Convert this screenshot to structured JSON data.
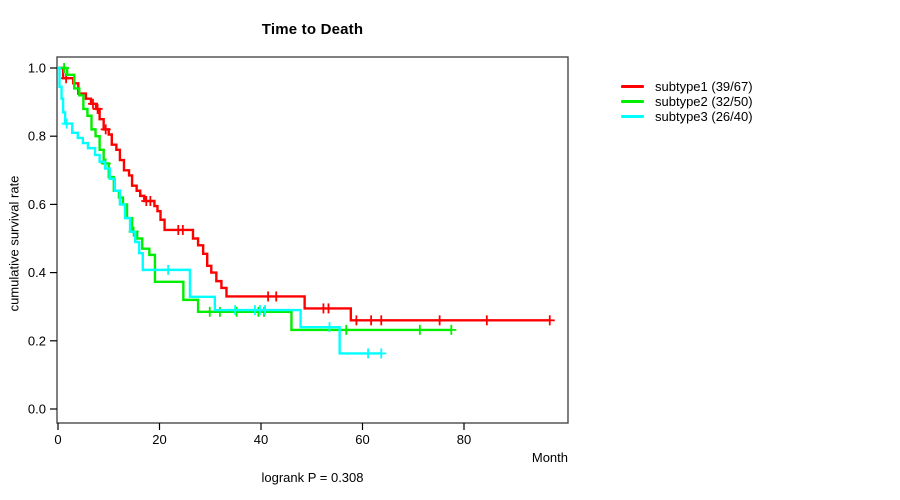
{
  "chart_data": {
    "type": "line",
    "subtype": "kaplan-meier-survival-steps",
    "title": "Time to Death",
    "xlabel": "Month",
    "ylabel": "cumulative survival rate",
    "footnote": "logrank P = 0.308",
    "xlim": [
      0,
      100
    ],
    "ylim": [
      0.0,
      1.0
    ],
    "x_ticks": [
      0,
      20,
      40,
      60,
      80
    ],
    "y_ticks": [
      0.0,
      0.2,
      0.4,
      0.6,
      0.8,
      1.0
    ],
    "grid": false,
    "legend_position": "top-right-outside",
    "series": [
      {
        "name": "subtype1 (39/67)",
        "color": "#ff0000",
        "steps": [
          [
            0,
            1.0
          ],
          [
            1,
            0.97
          ],
          [
            3,
            0.955
          ],
          [
            4,
            0.925
          ],
          [
            5.5,
            0.91
          ],
          [
            6.5,
            0.895
          ],
          [
            7.5,
            0.88
          ],
          [
            8.2,
            0.85
          ],
          [
            9,
            0.82
          ],
          [
            10,
            0.805
          ],
          [
            10.6,
            0.775
          ],
          [
            11.5,
            0.76
          ],
          [
            12.2,
            0.73
          ],
          [
            13,
            0.7
          ],
          [
            14,
            0.685
          ],
          [
            14.6,
            0.655
          ],
          [
            15.5,
            0.64
          ],
          [
            16.2,
            0.625
          ],
          [
            17,
            0.61
          ],
          [
            19,
            0.595
          ],
          [
            19.6,
            0.58
          ],
          [
            20.2,
            0.555
          ],
          [
            21,
            0.525
          ],
          [
            26.6,
            0.5
          ],
          [
            27.6,
            0.48
          ],
          [
            28.6,
            0.455
          ],
          [
            29.4,
            0.42
          ],
          [
            30.2,
            0.4
          ],
          [
            31.2,
            0.375
          ],
          [
            32.2,
            0.355
          ],
          [
            33.2,
            0.33
          ],
          [
            48.6,
            0.295
          ],
          [
            57.7,
            0.26
          ]
        ],
        "end_time": 96.9,
        "censors": [
          [
            1.6,
            0.97
          ],
          [
            6.9,
            0.895
          ],
          [
            7.8,
            0.88
          ],
          [
            9.4,
            0.82
          ],
          [
            17.4,
            0.61
          ],
          [
            18.2,
            0.61
          ],
          [
            23.7,
            0.525
          ],
          [
            24.6,
            0.525
          ],
          [
            41.4,
            0.33
          ],
          [
            43.0,
            0.33
          ],
          [
            52.3,
            0.295
          ],
          [
            53.3,
            0.295
          ],
          [
            58.8,
            0.26
          ],
          [
            61.7,
            0.26
          ],
          [
            63.7,
            0.26
          ],
          [
            75.2,
            0.26
          ],
          [
            84.5,
            0.26
          ],
          [
            96.9,
            0.26
          ]
        ]
      },
      {
        "name": "subtype2 (32/50)",
        "color": "#00ee00",
        "steps": [
          [
            0,
            1.0
          ],
          [
            1.8,
            0.98
          ],
          [
            3.2,
            0.94
          ],
          [
            4.2,
            0.92
          ],
          [
            5,
            0.88
          ],
          [
            5.8,
            0.86
          ],
          [
            6.6,
            0.82
          ],
          [
            7.4,
            0.8
          ],
          [
            8.2,
            0.76
          ],
          [
            9,
            0.72
          ],
          [
            10,
            0.68
          ],
          [
            11,
            0.64
          ],
          [
            12,
            0.62
          ],
          [
            12.8,
            0.6
          ],
          [
            13.6,
            0.56
          ],
          [
            14.6,
            0.52
          ],
          [
            15.6,
            0.5
          ],
          [
            16.6,
            0.47
          ],
          [
            18,
            0.452
          ],
          [
            19.1,
            0.373
          ],
          [
            24.7,
            0.32
          ],
          [
            27.6,
            0.285
          ],
          [
            46,
            0.232
          ]
        ],
        "end_time": 77.5,
        "censors": [
          [
            1.2,
            1.0
          ],
          [
            9.4,
            0.72
          ],
          [
            14.9,
            0.52
          ],
          [
            29.9,
            0.285
          ],
          [
            31.9,
            0.285
          ],
          [
            35.2,
            0.285
          ],
          [
            39.5,
            0.285
          ],
          [
            40.6,
            0.285
          ],
          [
            56.8,
            0.232
          ],
          [
            71.3,
            0.232
          ],
          [
            77.5,
            0.232
          ]
        ]
      },
      {
        "name": "subtype3 (26/40)",
        "color": "#00ffff",
        "steps": [
          [
            0,
            1.0
          ],
          [
            0.3,
            0.945
          ],
          [
            0.7,
            0.91
          ],
          [
            1.0,
            0.87
          ],
          [
            1.4,
            0.837
          ],
          [
            2.8,
            0.81
          ],
          [
            3.9,
            0.795
          ],
          [
            4.9,
            0.78
          ],
          [
            5.9,
            0.765
          ],
          [
            7.3,
            0.745
          ],
          [
            8.2,
            0.725
          ],
          [
            9.3,
            0.705
          ],
          [
            10.2,
            0.675
          ],
          [
            11.2,
            0.64
          ],
          [
            12.2,
            0.6
          ],
          [
            13.2,
            0.56
          ],
          [
            14.2,
            0.52
          ],
          [
            15.2,
            0.49
          ],
          [
            16,
            0.457
          ],
          [
            16.7,
            0.408
          ],
          [
            26,
            0.329
          ],
          [
            30.9,
            0.29
          ],
          [
            47.8,
            0.24
          ],
          [
            55.5,
            0.163
          ]
        ],
        "end_time": 63.7,
        "censors": [
          [
            1.7,
            0.837
          ],
          [
            21.7,
            0.408
          ],
          [
            34.9,
            0.29
          ],
          [
            38.8,
            0.29
          ],
          [
            39.8,
            0.29
          ],
          [
            40.8,
            0.29
          ],
          [
            53.5,
            0.24
          ],
          [
            61.1,
            0.163
          ],
          [
            63.7,
            0.163
          ]
        ]
      }
    ]
  }
}
